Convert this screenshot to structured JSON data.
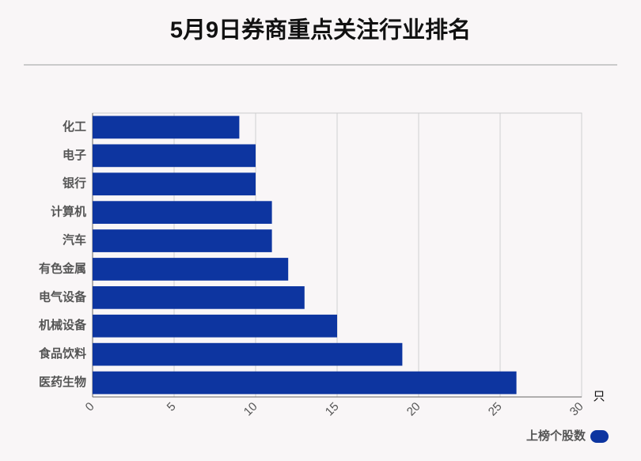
{
  "chart_data": {
    "type": "barh",
    "title": "5月9日券商重点关注行业排名",
    "categories": [
      "化工",
      "电子",
      "银行",
      "计算机",
      "汽车",
      "有色金属",
      "电气设备",
      "机械设备",
      "食品饮料",
      "医药生物"
    ],
    "series": [
      {
        "name": "上榜个股数",
        "color": "#0d35a0",
        "values": [
          9,
          10,
          10,
          11,
          11,
          12,
          13,
          15,
          19,
          26
        ]
      }
    ],
    "x_label": "只",
    "xlim": [
      0,
      30
    ],
    "xticks": [
      0,
      5,
      10,
      15,
      20,
      25,
      30
    ],
    "grid": true,
    "legend": "bottom-right"
  }
}
